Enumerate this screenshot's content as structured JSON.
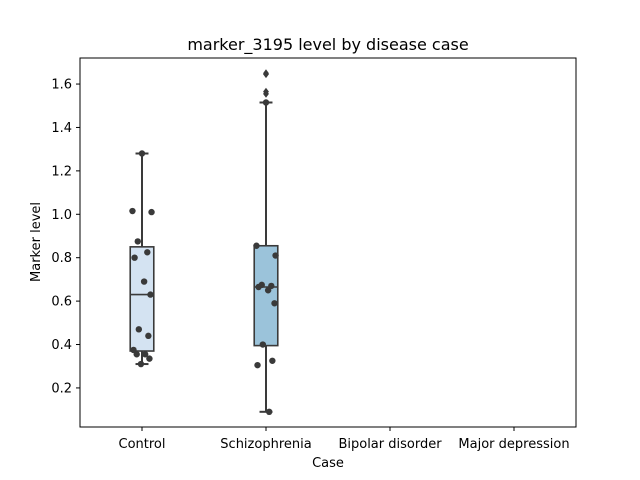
{
  "chart_data": {
    "type": "box",
    "title": "marker_3195 level by disease case",
    "xlabel": "Case",
    "ylabel": "Marker level",
    "categories": [
      "Control",
      "Schizophrenia",
      "Bipolar disorder",
      "Major depression"
    ],
    "yticks": [
      "0.2",
      "0.4",
      "0.6",
      "0.8",
      "1.0",
      "1.2",
      "1.4",
      "1.6"
    ],
    "ylim": [
      0.02,
      1.72
    ],
    "grid": false,
    "boxes": [
      {
        "category": "Control",
        "whisker_low": 0.31,
        "q1": 0.37,
        "median": 0.63,
        "q3": 0.85,
        "whisker_high": 1.28,
        "fill": "#d4e3f2",
        "outliers": [],
        "points": [
          1.28,
          1.015,
          1.01,
          0.875,
          0.825,
          0.8,
          0.69,
          0.63,
          0.47,
          0.44,
          0.375,
          0.355,
          0.355,
          0.335,
          0.31
        ]
      },
      {
        "category": "Schizophrenia",
        "whisker_low": 0.09,
        "q1": 0.395,
        "median": 0.665,
        "q3": 0.855,
        "whisker_high": 1.515,
        "fill": "#9bc3da",
        "outliers": [
          1.65,
          1.645,
          1.565,
          1.555
        ],
        "points": [
          1.515,
          0.855,
          0.81,
          0.675,
          0.67,
          0.665,
          0.65,
          0.59,
          0.4,
          0.325,
          0.305,
          0.09
        ]
      }
    ]
  }
}
